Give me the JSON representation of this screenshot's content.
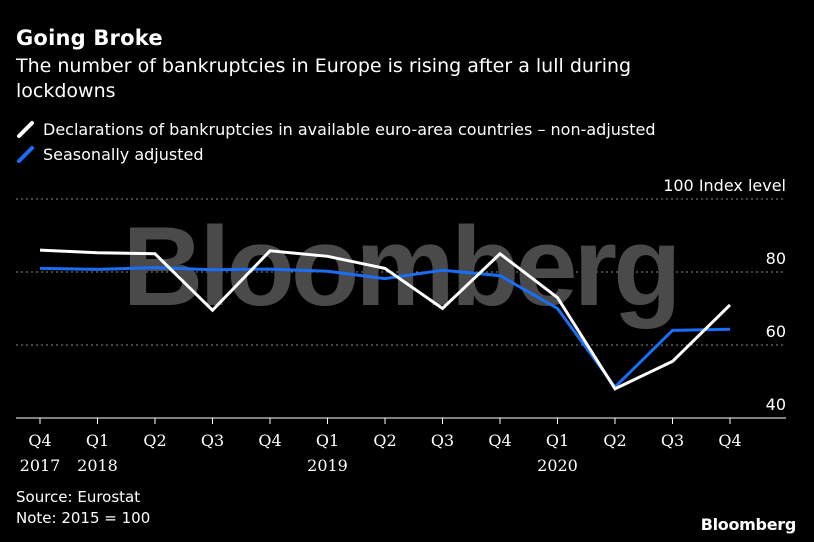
{
  "header": {
    "title": "Going Broke",
    "subtitle": "The number of bankruptcies in Europe is rising after a lull during lockdowns"
  },
  "legend": [
    {
      "label": "Declarations of bankruptcies in available euro-area countries – non-adjusted",
      "color": "#ffffff"
    },
    {
      "label": "Seasonally adjusted",
      "color": "#1a6ef5"
    }
  ],
  "footer": {
    "source": "Source: Eurostat",
    "note": "Note: 2015 = 100",
    "brand": "Bloomberg"
  },
  "watermark": "Bloomberg",
  "chart_data": {
    "type": "line",
    "title": "Going Broke",
    "ylabel": "Index level",
    "ylim": [
      40,
      100
    ],
    "y_ticks": [
      {
        "value": 100,
        "label": "100 Index level"
      },
      {
        "value": 80,
        "label": "80"
      },
      {
        "value": 60,
        "label": "60"
      },
      {
        "value": 40,
        "label": "40"
      }
    ],
    "gridlines": [
      100,
      80,
      60
    ],
    "x_labels": [
      [
        "Q4",
        "2017"
      ],
      [
        "Q1",
        "2018"
      ],
      [
        "Q2",
        ""
      ],
      [
        "Q3",
        ""
      ],
      [
        "Q4",
        ""
      ],
      [
        "Q1",
        "2019"
      ],
      [
        "Q2",
        ""
      ],
      [
        "Q3",
        ""
      ],
      [
        "Q4",
        ""
      ],
      [
        "Q1",
        "2020"
      ],
      [
        "Q2",
        ""
      ],
      [
        "Q3",
        ""
      ],
      [
        "Q4",
        ""
      ]
    ],
    "series": [
      {
        "name": "Declarations of bankruptcies in available euro-area countries – non-adjusted",
        "color": "#ffffff",
        "values": [
          86,
          85.3,
          85,
          69.5,
          85.8,
          84.3,
          81,
          70,
          85,
          73,
          48,
          55.5,
          71
        ]
      },
      {
        "name": "Seasonally adjusted",
        "color": "#1a6ef5",
        "values": [
          81,
          80.7,
          81.2,
          80.6,
          80.8,
          80.2,
          78.2,
          80.5,
          79,
          70,
          48.5,
          64,
          64.3
        ]
      }
    ]
  }
}
